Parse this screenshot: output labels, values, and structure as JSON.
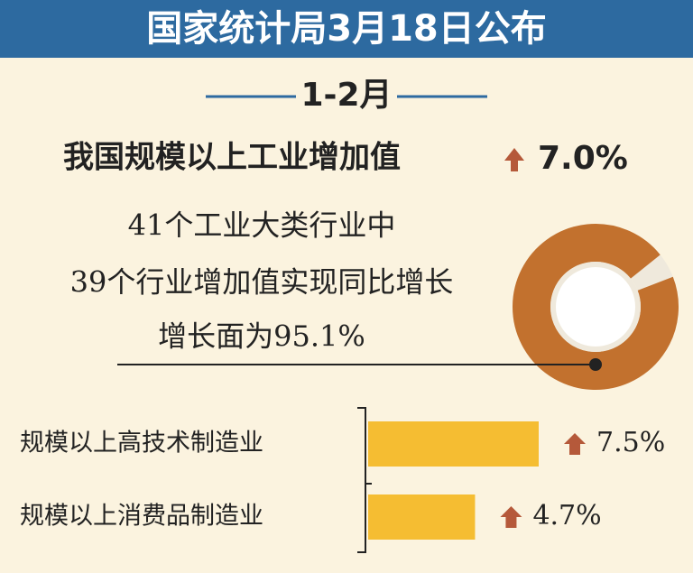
{
  "header": {
    "title": "国家统计局3月18日公布"
  },
  "period": "1-2月",
  "headline": {
    "label": "我国规模以上工业增加值",
    "value": "7.0%"
  },
  "notes": [
    "41个工业大类行业中",
    "39个行业增加值实现同比增长",
    "增长面为95.1%"
  ],
  "donut": {
    "value": 95.1,
    "color": "#c2712e",
    "rest_color": "#efe9dc"
  },
  "chart_data": {
    "type": "bar",
    "orientation": "horizontal",
    "categories": [
      "规模以上高技术制造业",
      "规模以上消费品制造业"
    ],
    "values": [
      7.5,
      4.7
    ],
    "value_labels": [
      "7.5%",
      "4.7%"
    ],
    "color": "#f5bd32"
  }
}
